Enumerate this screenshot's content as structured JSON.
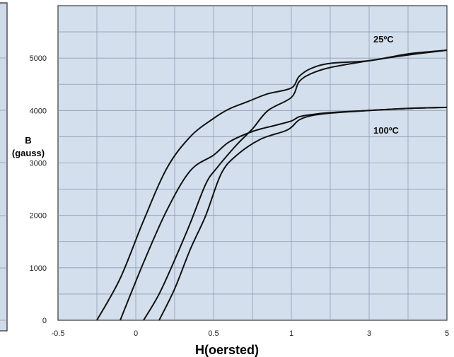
{
  "chart_data": {
    "type": "line",
    "xlabel": "H(oersted)",
    "ylabel": "B",
    "ylabel_unit": "(gauss)",
    "x_tick_labels": [
      "-0.5",
      "0",
      "0.5",
      "1",
      "3",
      "5"
    ],
    "ylim": [
      0,
      6000
    ],
    "y_ticks": [
      0,
      1000,
      2000,
      3000,
      4000,
      5000
    ],
    "grid": true,
    "annotations": [
      "25ºC",
      "100ºC"
    ],
    "series": [
      {
        "annotation": "25ºC",
        "branch": "upper",
        "x": [
          -0.25,
          -0.1,
          0.05,
          0.2,
          0.35,
          0.5,
          0.6,
          0.72,
          0.85,
          1.0,
          1.2,
          1.5,
          2.0,
          3.0,
          4.0,
          5.0
        ],
        "y": [
          0,
          800,
          1900,
          2900,
          3500,
          3850,
          4030,
          4170,
          4320,
          4430,
          4650,
          4800,
          4900,
          4950,
          5080,
          5150
        ]
      },
      {
        "annotation": "25ºC",
        "branch": "lower",
        "x": [
          0.05,
          0.15,
          0.25,
          0.35,
          0.45,
          0.52,
          0.65,
          0.75,
          0.85,
          1.0,
          1.2,
          1.5,
          2.0,
          3.0,
          4.0,
          5.0
        ],
        "y": [
          0,
          500,
          1150,
          1850,
          2600,
          2900,
          3350,
          3650,
          4000,
          4250,
          4550,
          4700,
          4820,
          4950,
          5060,
          5150
        ]
      },
      {
        "annotation": "100ºC",
        "branch": "upper",
        "x": [
          -0.1,
          0.05,
          0.2,
          0.35,
          0.5,
          0.6,
          0.75,
          0.9,
          1.0,
          1.2,
          1.5,
          2.0,
          3.0,
          4.0,
          5.0
        ],
        "y": [
          0,
          1100,
          2100,
          2850,
          3150,
          3400,
          3600,
          3720,
          3800,
          3880,
          3920,
          3960,
          4000,
          4040,
          4060
        ]
      },
      {
        "annotation": "100ºC",
        "branch": "lower",
        "x": [
          0.15,
          0.25,
          0.35,
          0.45,
          0.55,
          0.65,
          0.8,
          0.95,
          1.0,
          1.2,
          1.5,
          2.0,
          3.0,
          4.0,
          5.0
        ],
        "y": [
          0,
          600,
          1350,
          2000,
          2800,
          3150,
          3450,
          3600,
          3680,
          3820,
          3900,
          3950,
          4000,
          4040,
          4060
        ]
      }
    ]
  }
}
